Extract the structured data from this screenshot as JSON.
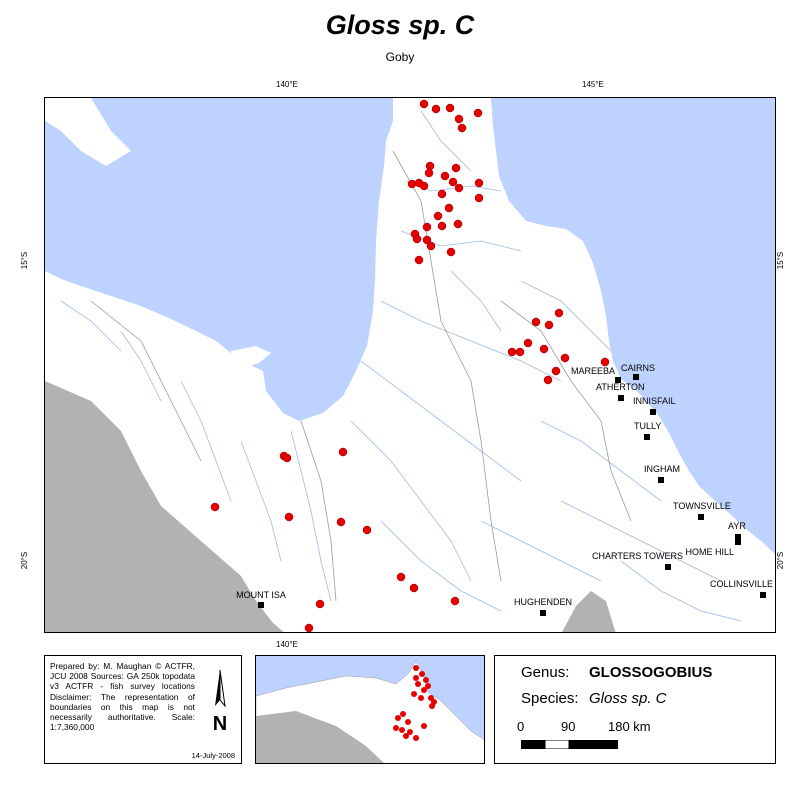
{
  "title": "Gloss sp. C",
  "subtitle": "Goby",
  "ticks": {
    "lon_140": "140°E",
    "lon_145": "145°E",
    "lat_15": "15°S",
    "lat_20": "20°S"
  },
  "colors": {
    "sea": "#bed2ff",
    "land": "#ffffff",
    "outside_region": "#b2b2b2",
    "rivers": "#9ebbe8",
    "boundaries": "#9c9c9c",
    "records": "#e60000"
  },
  "towns": [
    {
      "name": "CAIRNS"
    },
    {
      "name": "MAREEBA"
    },
    {
      "name": "ATHERTON"
    },
    {
      "name": "INNISFAIL"
    },
    {
      "name": "TULLY"
    },
    {
      "name": "INGHAM"
    },
    {
      "name": "TOWNSVILLE"
    },
    {
      "name": "AYR"
    },
    {
      "name": "HOME HILL"
    },
    {
      "name": "CHARTERS TOWERS"
    },
    {
      "name": "COLLINSVILLE"
    },
    {
      "name": "HUGHENDEN"
    },
    {
      "name": "MOUNT ISA"
    }
  ],
  "credits": {
    "text": "Prepared by: M. Maughan © ACTFR, JCU 2008 Sources: GA 250k topodata v3 ACTFR - fish survey locations Disclaimer: The representation of boundaries on this map is not necessarily authoritative. Scale: 1:7,360,000",
    "date": "14-July-2008"
  },
  "north_arrow": {
    "label": "N",
    "icon": "north-arrow-icon"
  },
  "info": {
    "genus_label": "Genus:",
    "genus_value": "GLOSSOGOBIUS",
    "species_label": "Species:",
    "species_value": "Gloss sp. C",
    "scale_labels": [
      "0",
      "90",
      "180 km"
    ]
  }
}
